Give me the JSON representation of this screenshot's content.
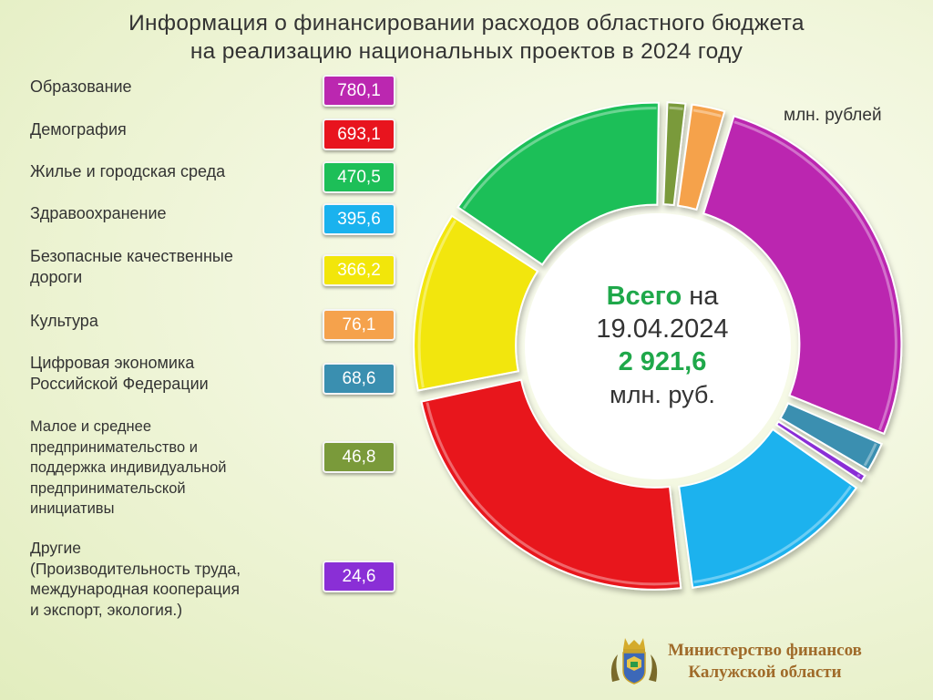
{
  "title_line1": "Информация о финансировании расходов областного бюджета",
  "title_line2": "на реализацию национальных проектов в 2024 году",
  "units": "млн. рублей",
  "center": {
    "total_word": "Всего",
    "on_word": "на",
    "date": "19.04.2024",
    "total": "2 921,6",
    "unit": "млн. руб."
  },
  "ministry": {
    "line1": "Министерство финансов",
    "line2": "Калужской области"
  },
  "chart_data": {
    "type": "pie",
    "donut": true,
    "total": 2921.6,
    "slices": [
      {
        "label": "Образование",
        "value": 780.1,
        "value_text": "780,1",
        "color": "#bb27b0"
      },
      {
        "label": "Демография",
        "value": 693.1,
        "value_text": "693,1",
        "color": "#e8141e"
      },
      {
        "label": "Жилье и городская среда",
        "value": 470.5,
        "value_text": "470,5",
        "color": "#1dbf58"
      },
      {
        "label": "Здравоохранение",
        "value": 395.6,
        "value_text": "395,6",
        "color": "#1ab2ee"
      },
      {
        "label": "Безопасные качественные дороги",
        "value": 366.2,
        "value_text": "366,2",
        "color": "#f2e60a"
      },
      {
        "label": "Культура",
        "value": 76.1,
        "value_text": "76,1",
        "color": "#f5a24c"
      },
      {
        "label": "Цифровая экономика Российской Федерации",
        "value": 68.6,
        "value_text": "68,6",
        "color": "#3a8fb0"
      },
      {
        "label": "Малое и среднее предпринимательство и поддержка индивидуальной предпринимательской инициативы",
        "value": 46.8,
        "value_text": "46,8",
        "color": "#7a9a3a"
      },
      {
        "label": "Другие (Производительность труда, международная кооперация и экспорт, экология.)",
        "value": 24.6,
        "value_text": "24,6",
        "color": "#8a2fd6"
      }
    ]
  },
  "legend": [
    {
      "lines": [
        "Образование"
      ]
    },
    {
      "lines": [
        "Демография"
      ]
    },
    {
      "lines": [
        "Жилье и городская среда"
      ]
    },
    {
      "lines": [
        "Здравоохранение"
      ]
    },
    {
      "lines": [
        "Безопасные качественные",
        "дороги"
      ]
    },
    {
      "lines": [
        "Культура"
      ]
    },
    {
      "lines": [
        "Цифровая экономика",
        "Российской Федерации"
      ]
    },
    {
      "lines": [
        "Малое и среднее",
        "предпринимательство и",
        "поддержка индивидуальной",
        "предпринимательской",
        "инициативы"
      ]
    },
    {
      "lines": [
        "Другие",
        "(Производительность труда,",
        "международная кооперация",
        "и экспорт, экология.)"
      ]
    }
  ]
}
